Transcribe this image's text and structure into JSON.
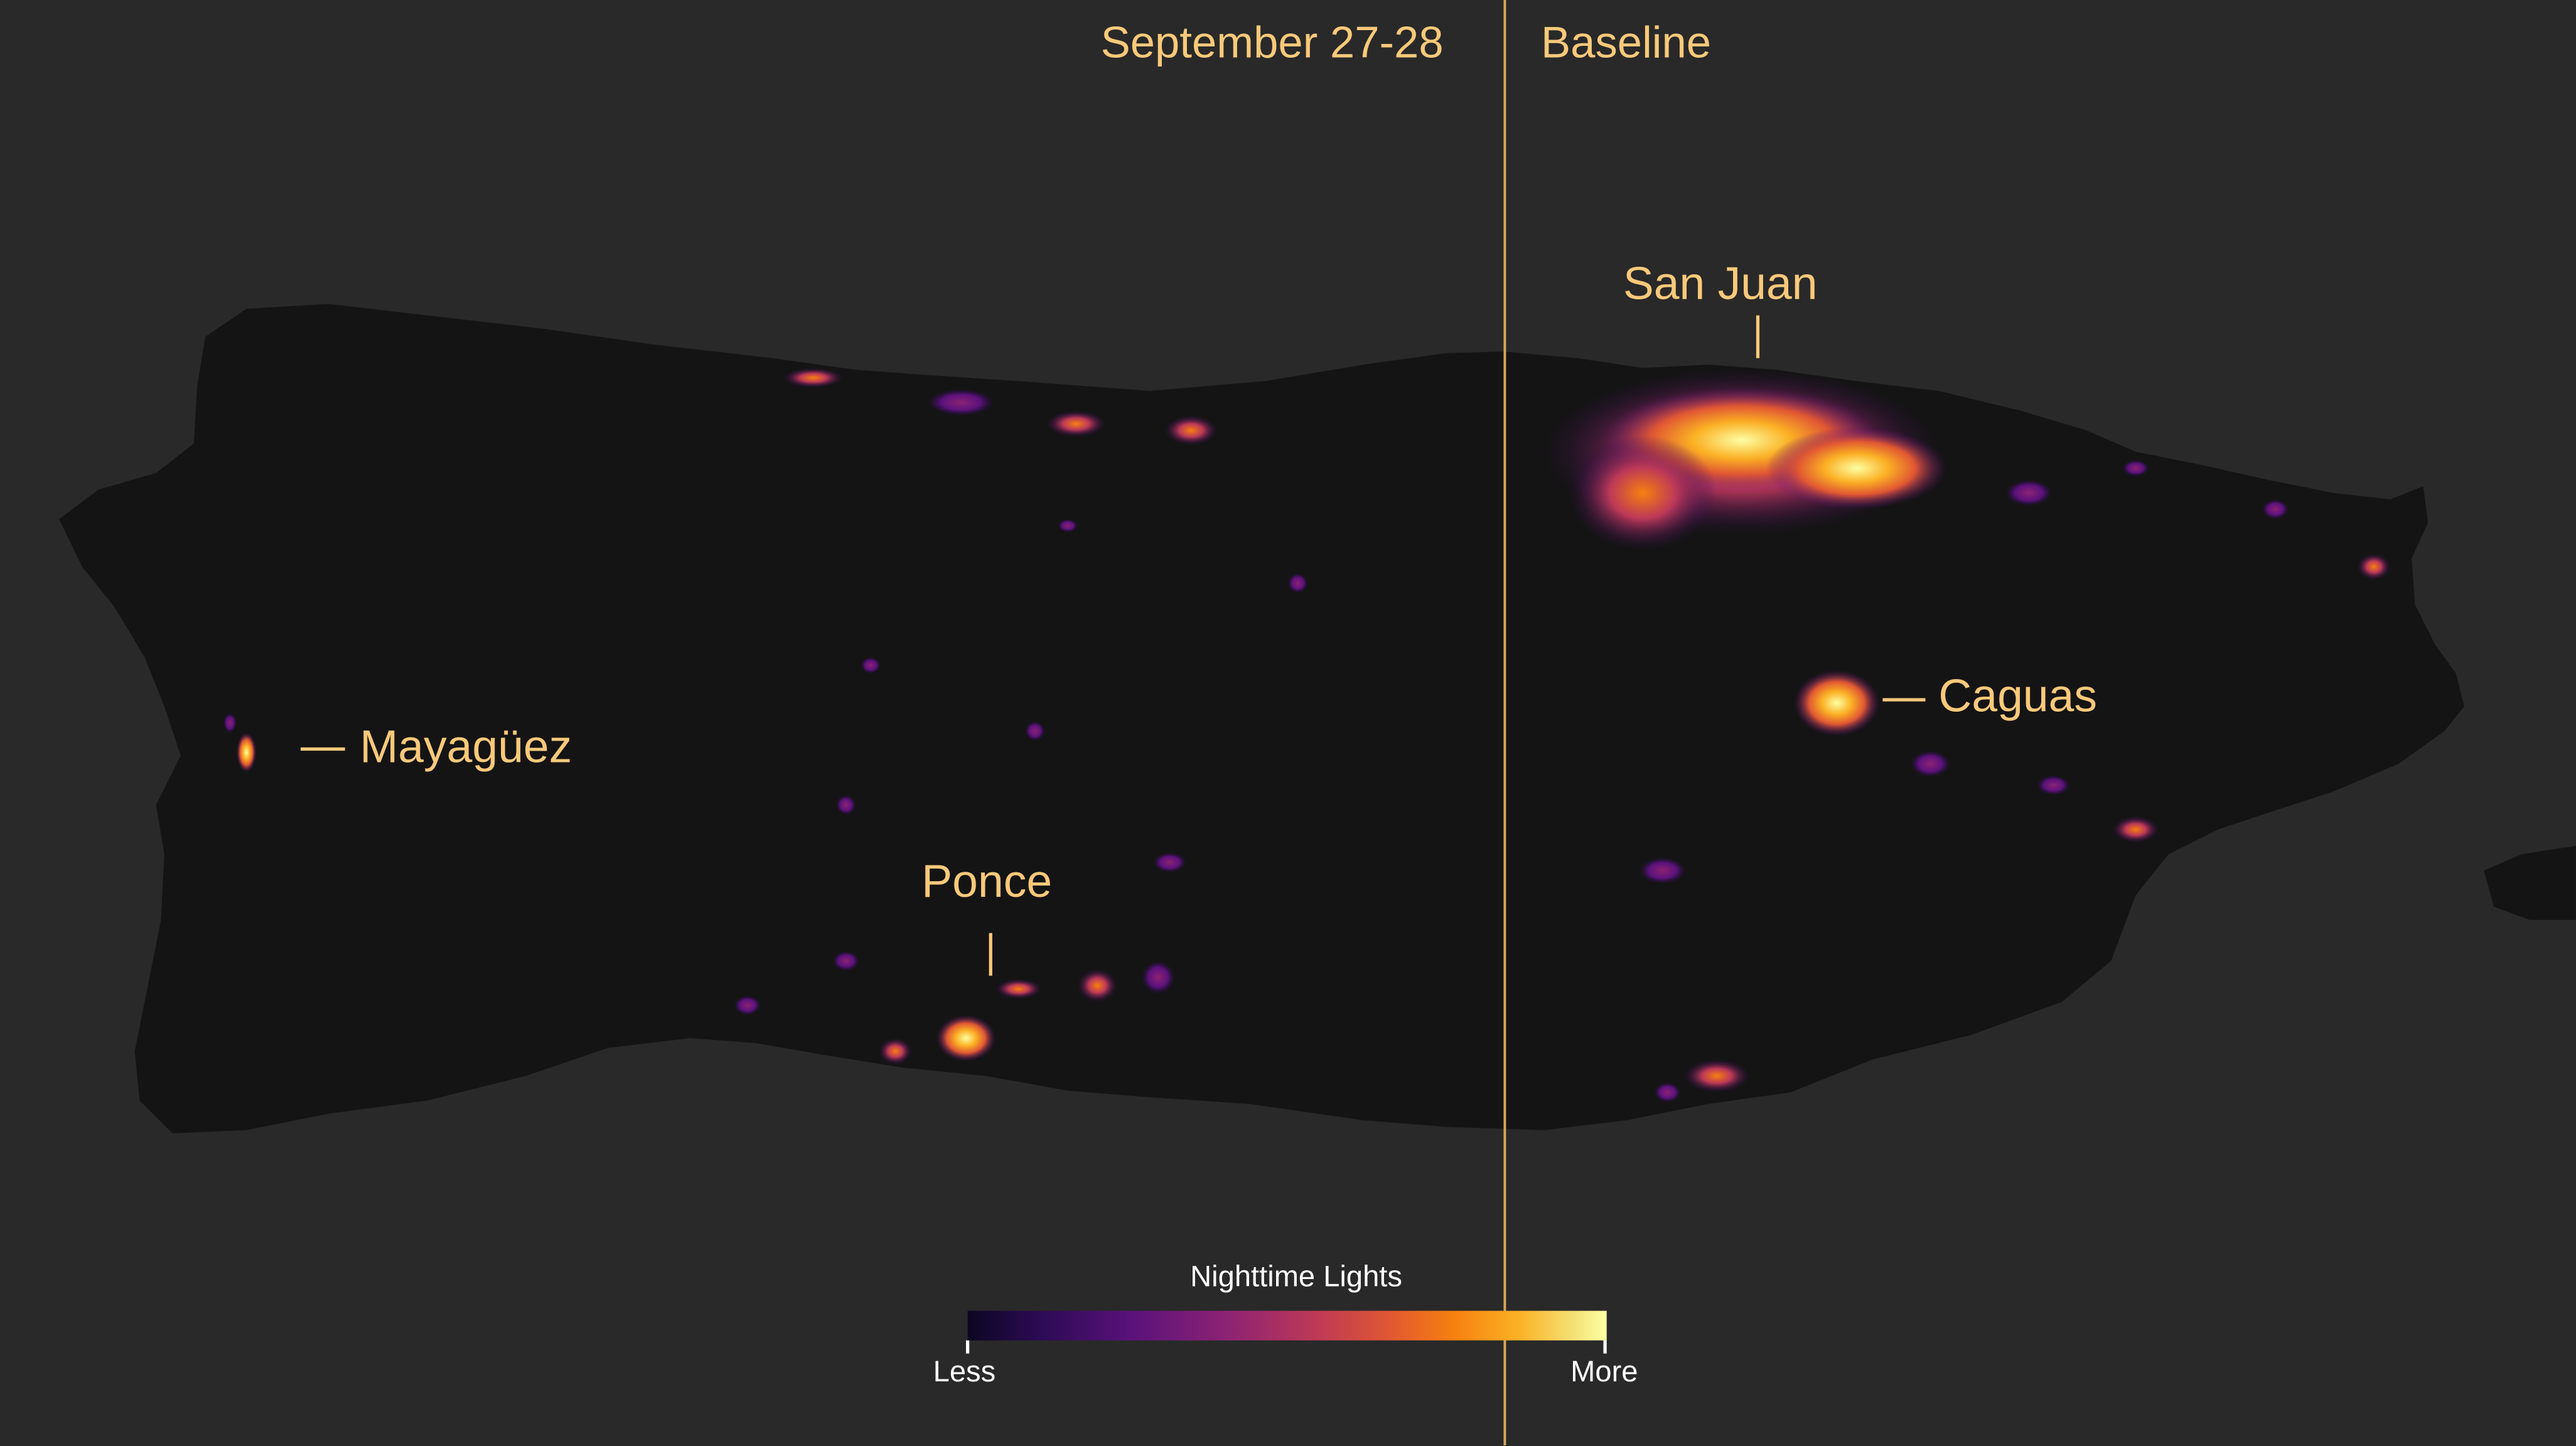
{
  "panels": {
    "left_title": "September 27-28",
    "right_title": "Baseline"
  },
  "cities": {
    "san_juan": "San Juan",
    "caguas": "Caguas",
    "mayaguez": "Mayagüez",
    "ponce": "Ponce"
  },
  "legend": {
    "title": "Nighttime Lights",
    "low_label": "Less",
    "high_label": "More"
  },
  "colors": {
    "background": "#292929",
    "land": "#151414",
    "accent": "#f8c97a",
    "divider": "#d9a55a"
  }
}
